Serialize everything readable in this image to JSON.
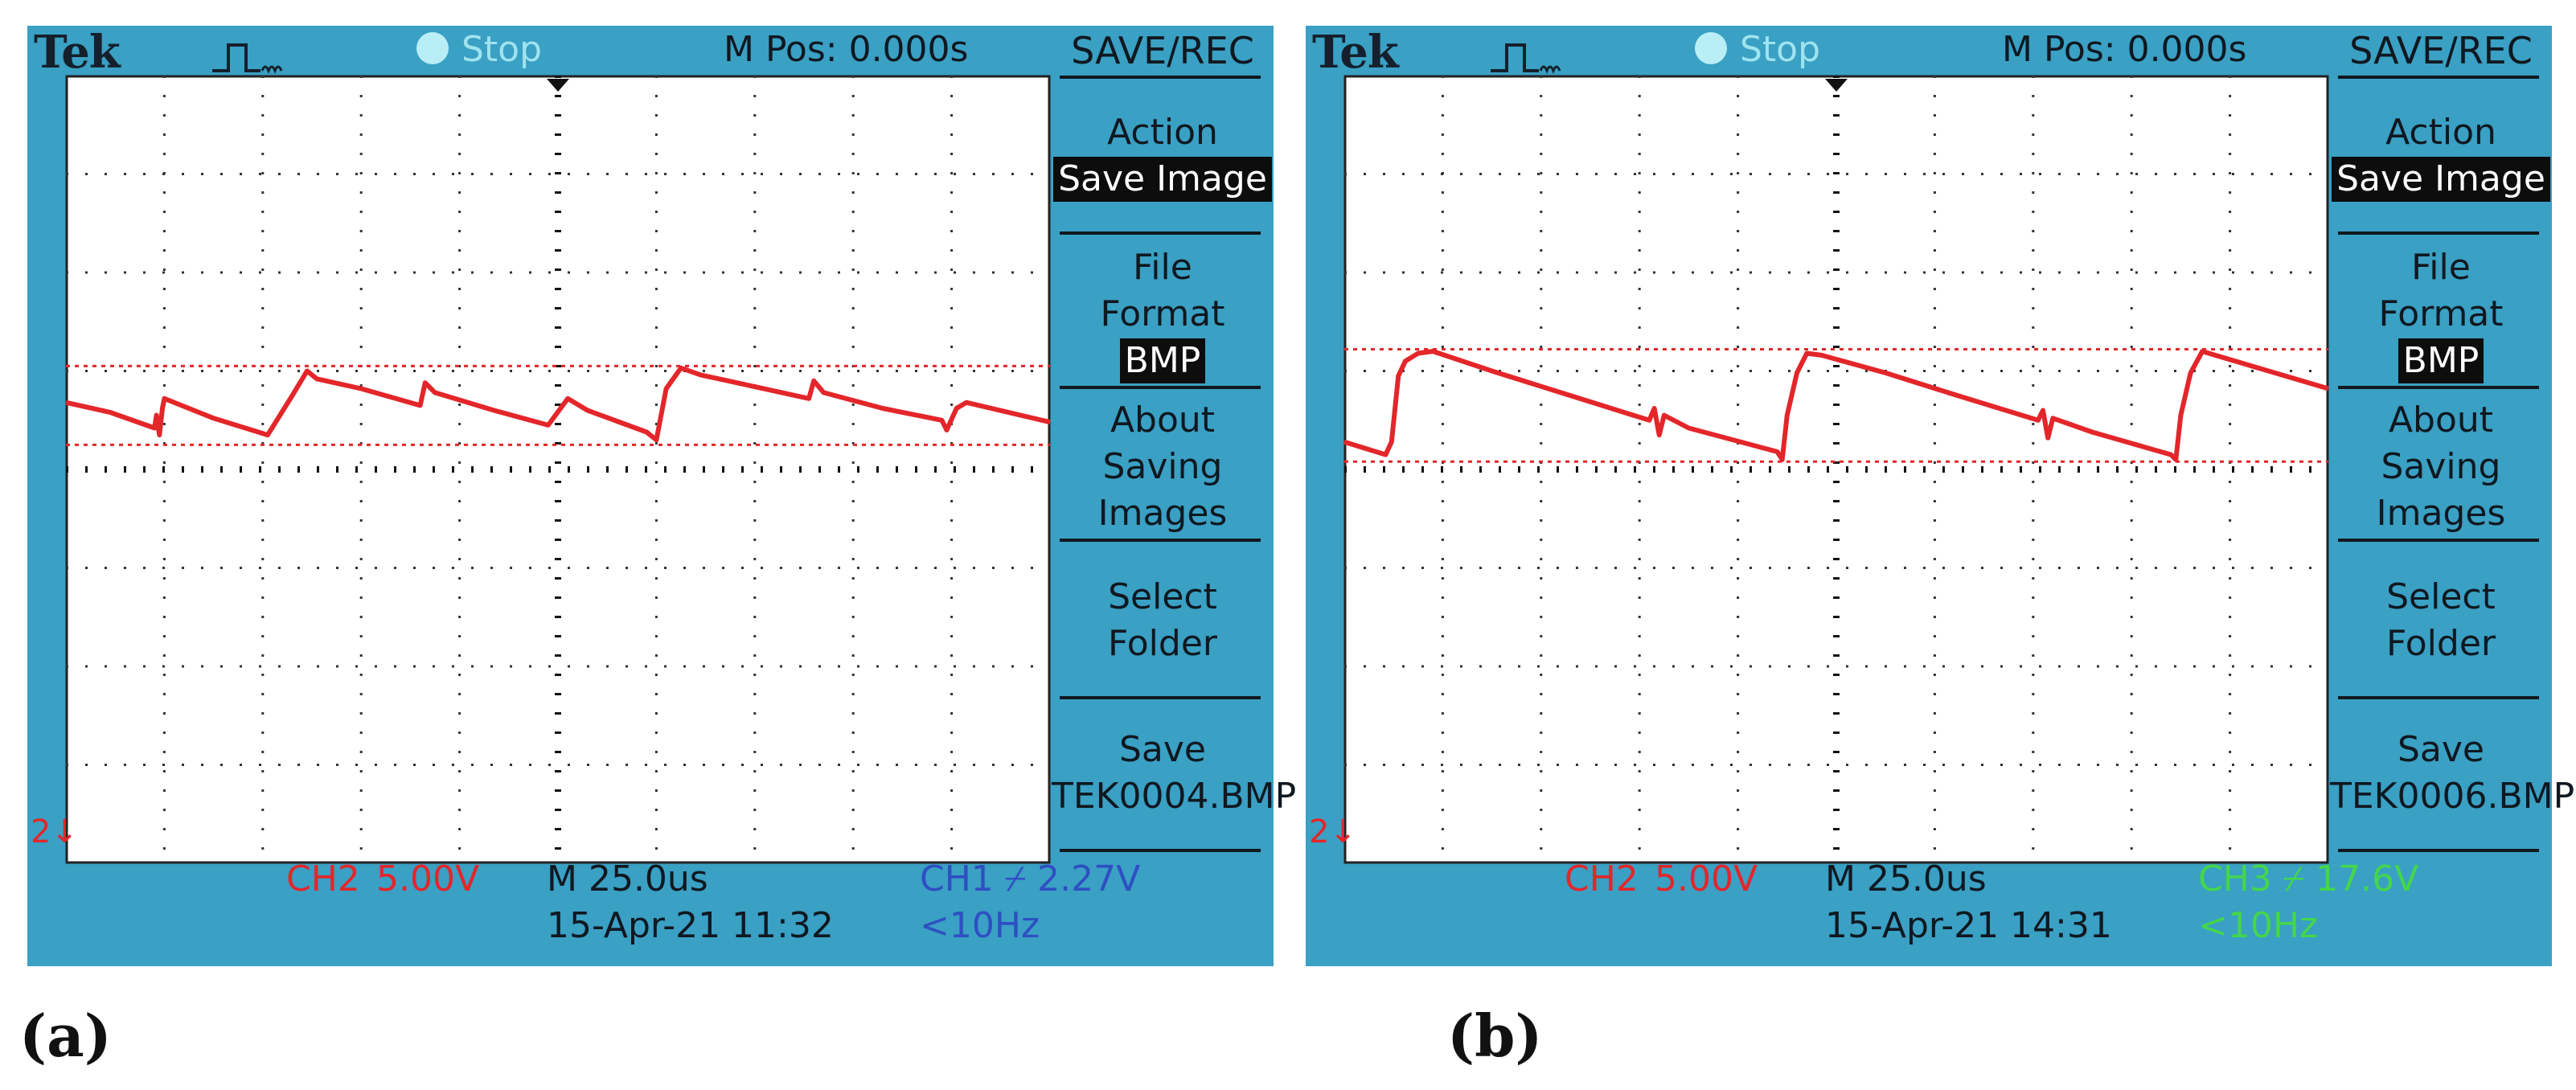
{
  "panels": [
    {
      "label": "(a)",
      "brand": "Tek",
      "status": "Stop",
      "m_pos": "M Pos: 0.000s",
      "menu": {
        "title": "SAVE/REC",
        "action_label": "Action",
        "action_value": "Save Image",
        "file_format_line1": "File",
        "file_format_line2": "Format",
        "file_format_value": "BMP",
        "about_line1": "About",
        "about_line2": "Saving",
        "about_line3": "Images",
        "select_line1": "Select",
        "select_line2": "Folder",
        "save_line1": "Save",
        "save_filename": "TEK0004.BMP"
      },
      "ch_label": "CH2",
      "ch_scale": "5.00V",
      "timebase": "M 25.0us",
      "datetime": "15-Apr-21 11:32",
      "trigger": "CH1 ⌿ 2.27V",
      "trigger_freq": "<10Hz",
      "trigger_color": "#2f4fc2",
      "ground_marker": "2",
      "trace": {
        "color": "#e3262a",
        "cursor_high_div": 5.05,
        "cursor_low_div": 4.25,
        "samples_div": [
          [
            0,
            4.68
          ],
          [
            0.45,
            4.58
          ],
          [
            0.9,
            4.42
          ],
          [
            0.92,
            4.55
          ],
          [
            0.95,
            4.35
          ],
          [
            0.98,
            4.62
          ],
          [
            1.0,
            4.72
          ],
          [
            1.5,
            4.52
          ],
          [
            2.05,
            4.35
          ],
          [
            2.3,
            4.75
          ],
          [
            2.45,
            5.0
          ],
          [
            2.55,
            4.92
          ],
          [
            3.0,
            4.82
          ],
          [
            3.6,
            4.65
          ],
          [
            3.65,
            4.88
          ],
          [
            3.75,
            4.78
          ],
          [
            4.35,
            4.6
          ],
          [
            4.9,
            4.45
          ],
          [
            5.1,
            4.72
          ],
          [
            5.3,
            4.6
          ],
          [
            5.9,
            4.38
          ],
          [
            6.0,
            4.3
          ],
          [
            6.1,
            4.82
          ],
          [
            6.25,
            5.03
          ],
          [
            6.45,
            4.96
          ],
          [
            7.0,
            4.84
          ],
          [
            7.55,
            4.72
          ],
          [
            7.6,
            4.9
          ],
          [
            7.7,
            4.78
          ],
          [
            8.3,
            4.62
          ],
          [
            8.9,
            4.5
          ],
          [
            8.95,
            4.4
          ],
          [
            9.05,
            4.62
          ],
          [
            9.15,
            4.68
          ],
          [
            10.0,
            4.48
          ]
        ]
      }
    },
    {
      "label": "(b)",
      "brand": "Tek",
      "status": "Stop",
      "m_pos": "M Pos: 0.000s",
      "menu": {
        "title": "SAVE/REC",
        "action_label": "Action",
        "action_value": "Save Image",
        "file_format_line1": "File",
        "file_format_line2": "Format",
        "file_format_value": "BMP",
        "about_line1": "About",
        "about_line2": "Saving",
        "about_line3": "Images",
        "select_line1": "Select",
        "select_line2": "Folder",
        "save_line1": "Save",
        "save_filename": "TEK0006.BMP"
      },
      "ch_label": "CH2",
      "ch_scale": "5.00V",
      "timebase": "M 25.0us",
      "datetime": "15-Apr-21 14:31",
      "trigger": "CH3 ⌿ 17.6V",
      "trigger_freq": "<10Hz",
      "trigger_color": "#44d64c",
      "ground_marker": "2",
      "trace": {
        "color": "#e3262a",
        "cursor_high_div": 5.22,
        "cursor_low_div": 4.08,
        "samples_div": [
          [
            0,
            4.28
          ],
          [
            0.42,
            4.15
          ],
          [
            0.48,
            4.28
          ],
          [
            0.55,
            4.95
          ],
          [
            0.62,
            5.1
          ],
          [
            0.75,
            5.18
          ],
          [
            0.9,
            5.2
          ],
          [
            1.5,
            5.0
          ],
          [
            2.2,
            4.78
          ],
          [
            3.1,
            4.5
          ],
          [
            3.15,
            4.62
          ],
          [
            3.2,
            4.35
          ],
          [
            3.25,
            4.55
          ],
          [
            3.5,
            4.42
          ],
          [
            4.4,
            4.18
          ],
          [
            4.45,
            4.1
          ],
          [
            4.5,
            4.55
          ],
          [
            4.6,
            4.98
          ],
          [
            4.7,
            5.18
          ],
          [
            4.85,
            5.16
          ],
          [
            5.5,
            4.98
          ],
          [
            6.2,
            4.76
          ],
          [
            7.05,
            4.5
          ],
          [
            7.1,
            4.6
          ],
          [
            7.15,
            4.32
          ],
          [
            7.2,
            4.52
          ],
          [
            7.6,
            4.38
          ],
          [
            8.4,
            4.15
          ],
          [
            8.45,
            4.1
          ],
          [
            8.5,
            4.55
          ],
          [
            8.6,
            4.98
          ],
          [
            8.72,
            5.2
          ],
          [
            8.85,
            5.16
          ],
          [
            10.0,
            4.82
          ]
        ]
      }
    }
  ]
}
